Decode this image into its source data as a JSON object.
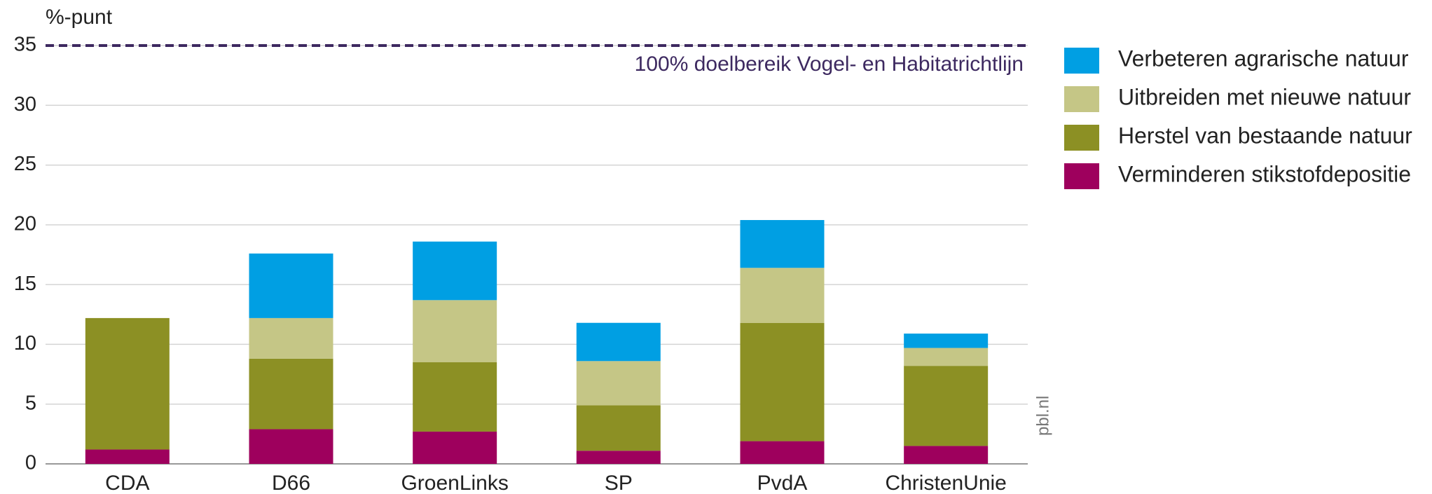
{
  "chart_data": {
    "type": "stacked_bar",
    "y_label": "%-punt",
    "categories": [
      "CDA",
      "D66",
      "GroenLinks",
      "SP",
      "PvdA",
      "ChristenUnie"
    ],
    "series": [
      {
        "name": "Verbeteren agrarische natuur",
        "color": "#009fe3",
        "values": [
          0,
          5.4,
          4.9,
          3.2,
          4.0,
          1.2
        ]
      },
      {
        "name": "Uitbreiden met nieuwe natuur",
        "color": "#c5c686",
        "values": [
          0,
          3.4,
          5.2,
          3.7,
          4.6,
          1.5
        ]
      },
      {
        "name": "Herstel van bestaande natuur",
        "color": "#8c9024",
        "values": [
          11.0,
          5.9,
          5.8,
          3.8,
          9.9,
          6.7
        ]
      },
      {
        "name": "Verminderen stikstofdepositie",
        "color": "#9e005d",
        "values": [
          1.2,
          2.9,
          2.7,
          1.1,
          1.9,
          1.5
        ]
      }
    ],
    "ylim": [
      0,
      35
    ],
    "yticks": [
      0,
      5,
      10,
      15,
      20,
      25,
      30,
      35
    ],
    "grid": true,
    "reference_line": {
      "value": 35,
      "label": "100% doelbereik Vogel- en Habitatrichtlijn",
      "color": "#3d2960"
    },
    "source": "pbl.nl",
    "legend": "right"
  }
}
